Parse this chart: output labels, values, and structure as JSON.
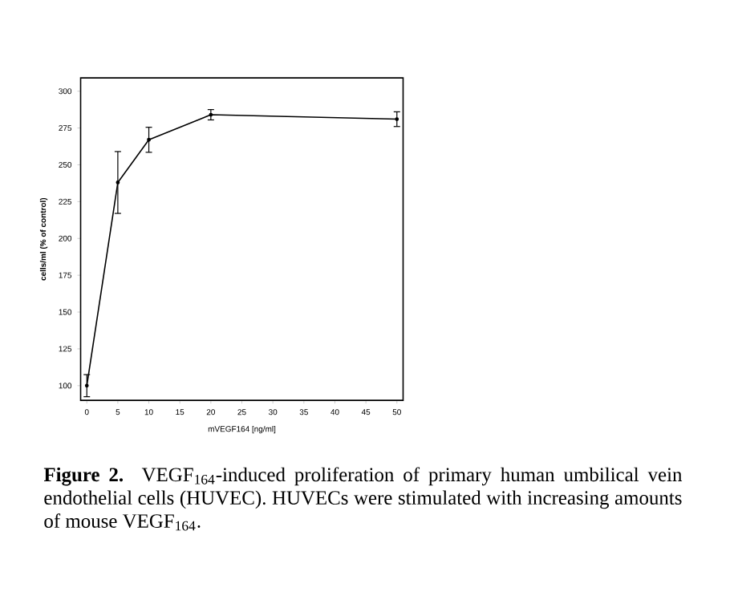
{
  "chart_data": {
    "type": "line",
    "xlabel": "mVEGF164 [ng/ml]",
    "ylabel": "cells/ml (% of control)",
    "x": [
      0,
      5,
      10,
      20,
      50
    ],
    "series": [
      {
        "color": "#000000",
        "values": [
          100,
          238,
          267,
          284,
          281
        ],
        "errors": [
          7.5,
          21,
          8.5,
          3.5,
          5
        ]
      }
    ],
    "xlim": [
      -1,
      51
    ],
    "ylim": [
      90,
      309
    ],
    "xticks": [
      0,
      5,
      10,
      15,
      20,
      25,
      30,
      35,
      40,
      45,
      50
    ],
    "yticks": [
      100,
      125,
      150,
      175,
      200,
      225,
      250,
      275,
      300
    ],
    "marker": "circle",
    "line_style": "solid",
    "annotations": [
      "**Figure 2.** VEGF$_{164}$-induced proliferation of primary human umbilical vein endothelial cells (HUVEC). HUVECs were stimulated with increasing amounts of mouse VEGF$_{164}$."
    ]
  }
}
